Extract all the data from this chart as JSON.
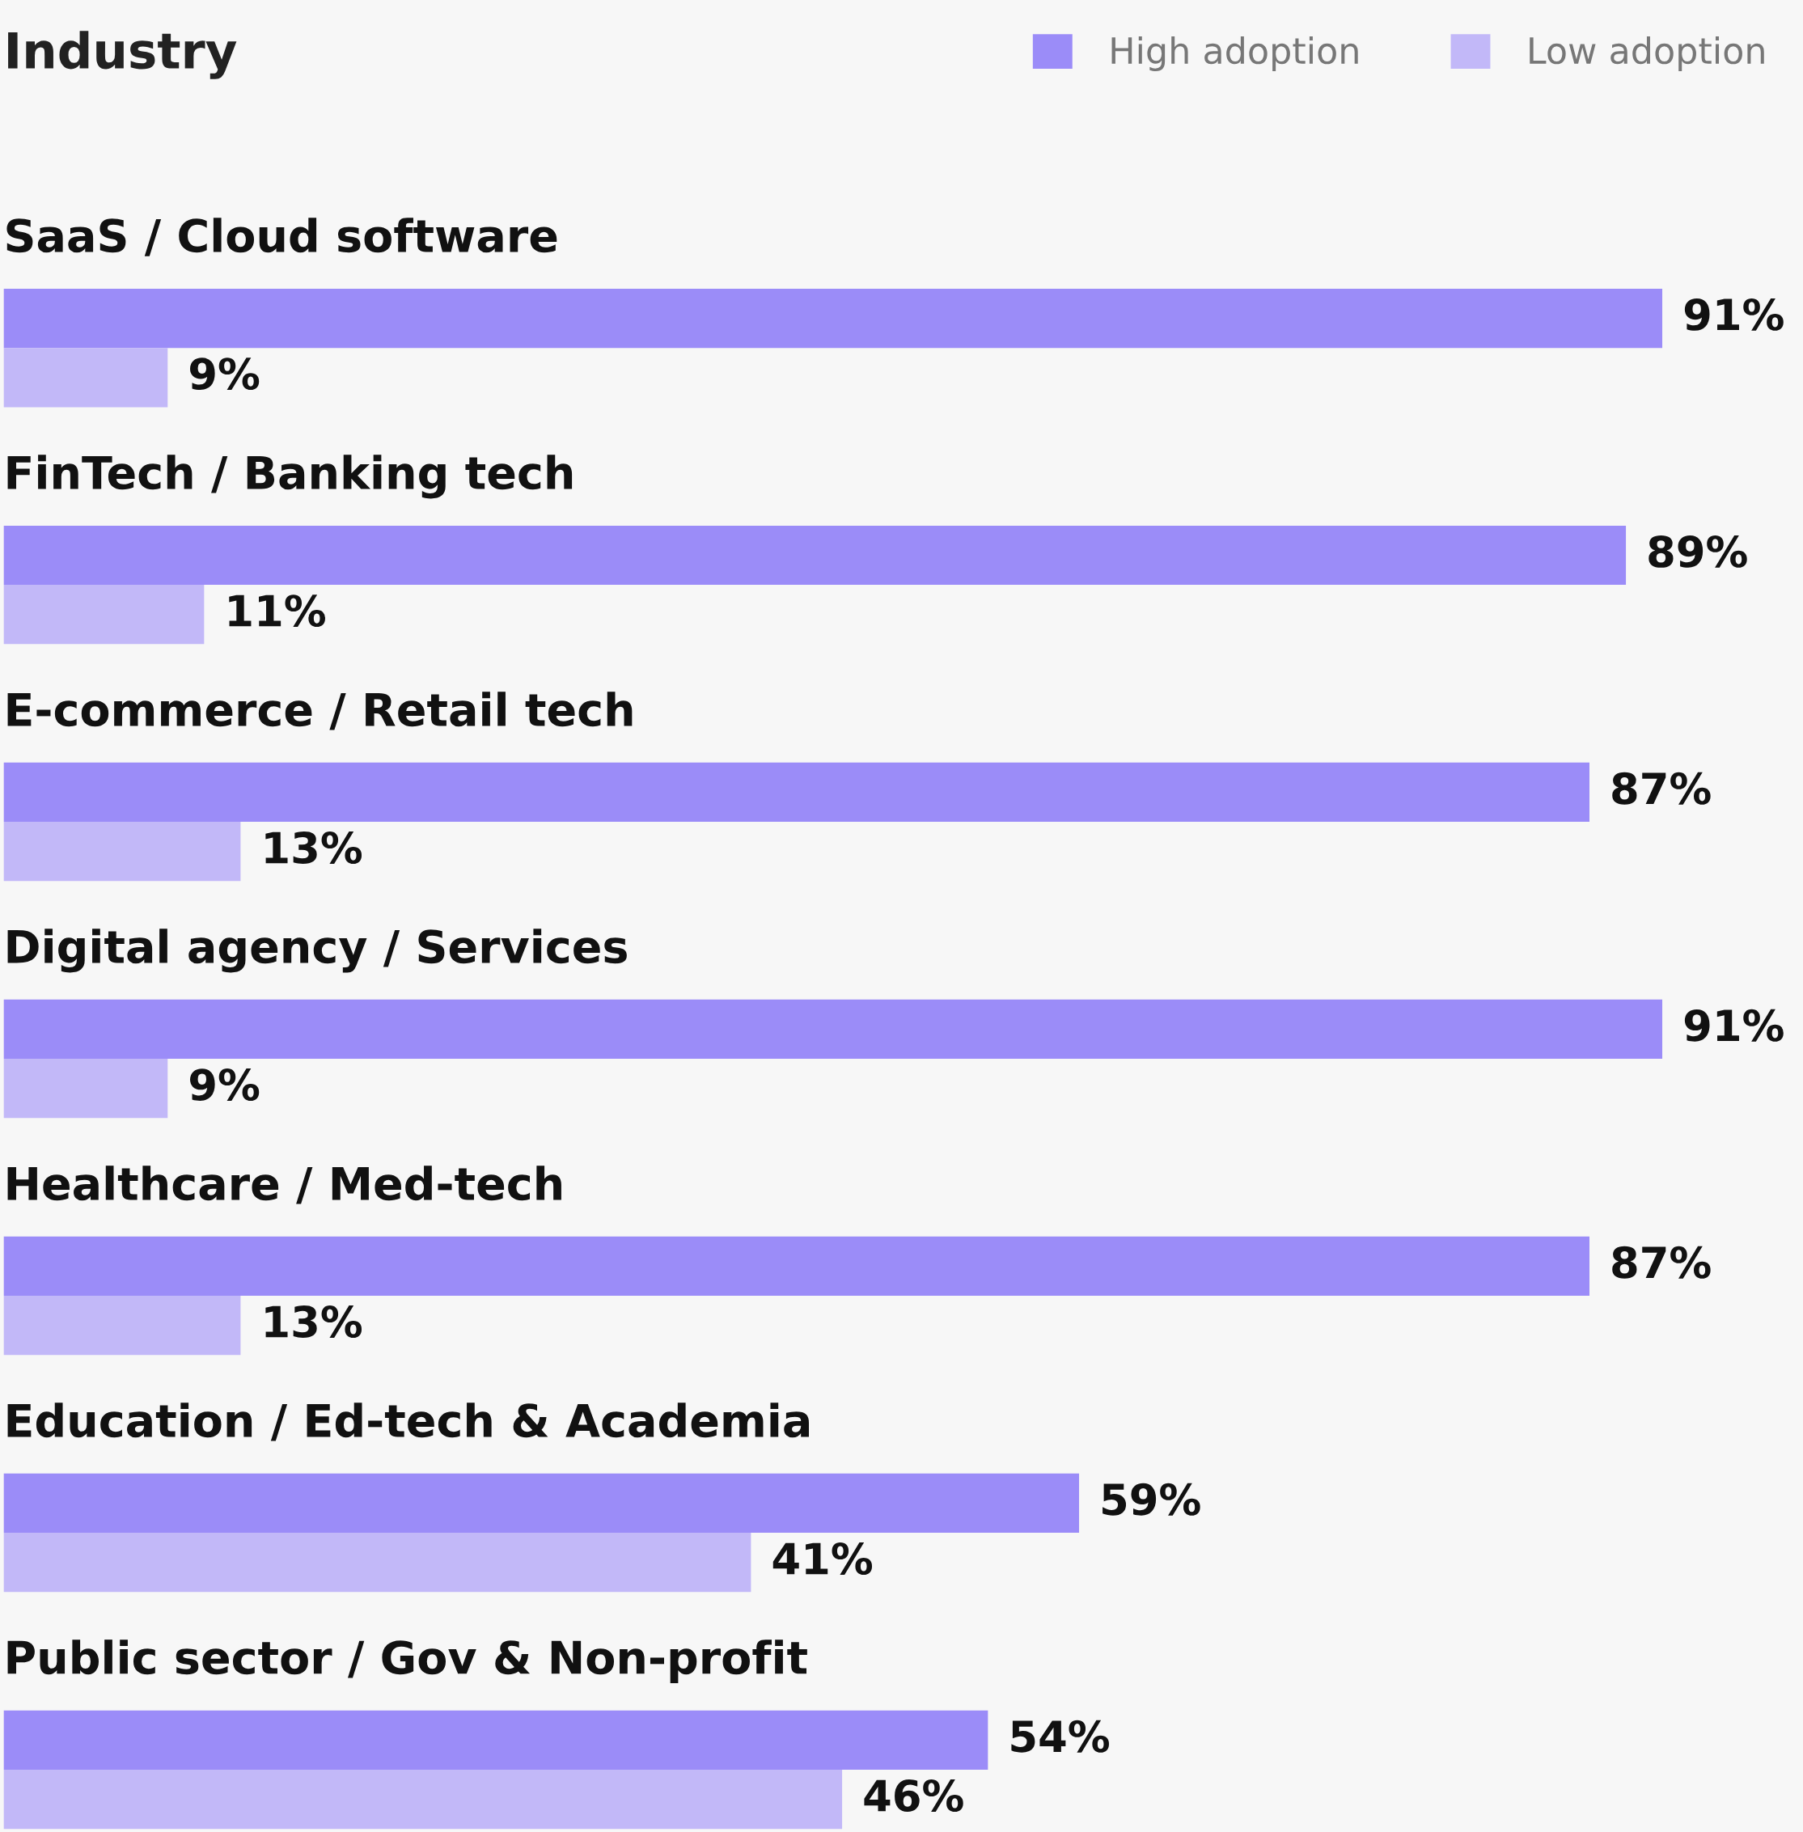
{
  "chart_data": {
    "type": "bar",
    "orientation": "horizontal",
    "title": "Industry",
    "categories": [
      "SaaS / Cloud software",
      "FinTech / Banking tech",
      "E-commerce / Retail tech",
      "Digital agency / Services",
      "Healthcare / Med-tech",
      "Education / Ed-tech & Academia",
      "Public sector / Gov & Non-profit"
    ],
    "series": [
      {
        "name": "High adoption",
        "color": "#9b8cf8",
        "values": [
          91,
          89,
          87,
          91,
          87,
          59,
          54
        ],
        "value_labels": [
          "91%",
          "89%",
          "87%",
          "91%",
          "87%",
          "59%",
          "54%"
        ]
      },
      {
        "name": "Low adoption",
        "color": "#c2b8f8",
        "values": [
          9,
          11,
          13,
          9,
          13,
          41,
          46
        ],
        "value_labels": [
          "9%",
          "11%",
          "13%",
          "9%",
          "13%",
          "41%",
          "46%"
        ]
      }
    ],
    "legend": "top right"
  }
}
